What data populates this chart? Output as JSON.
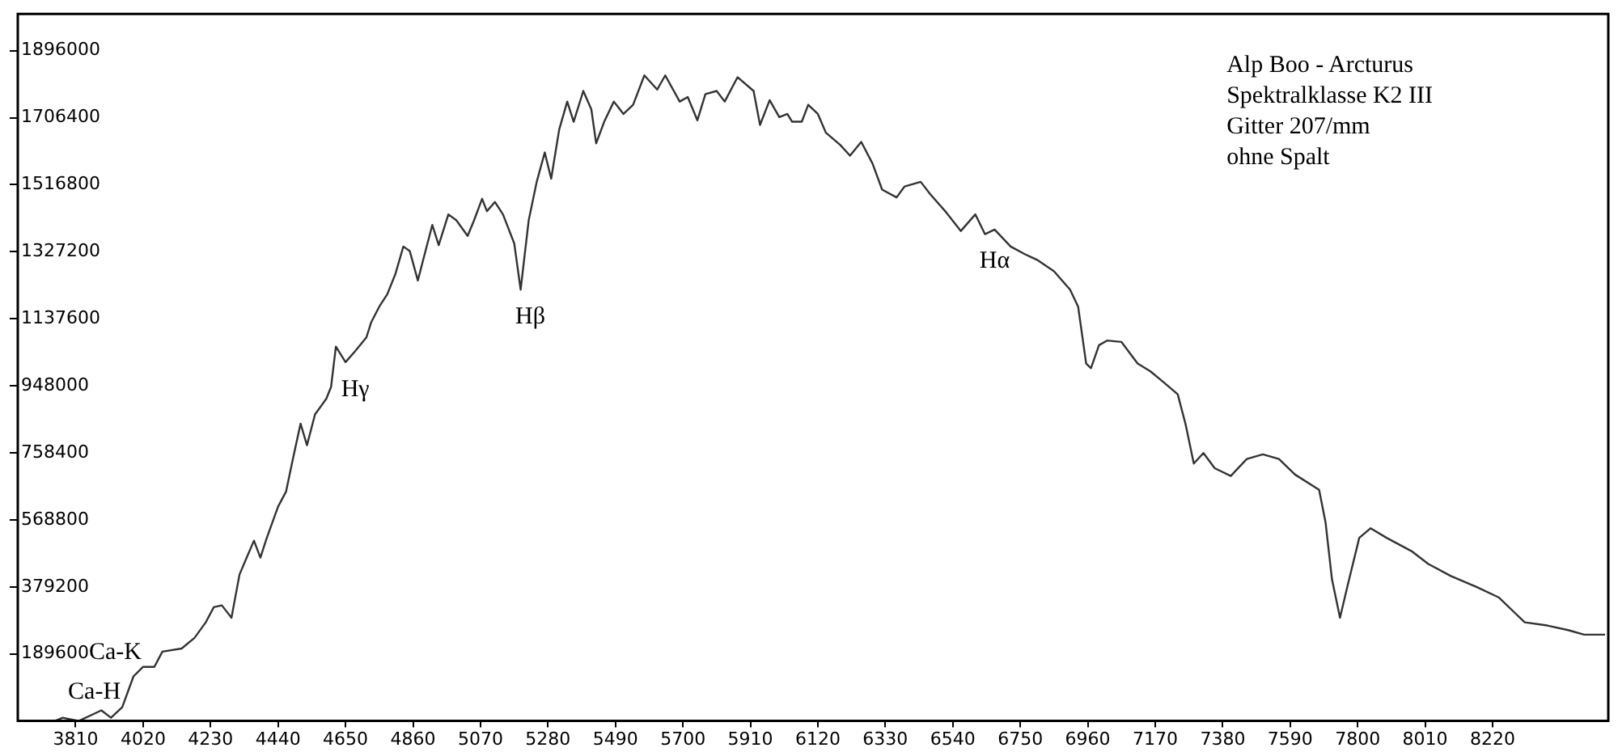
{
  "chart_data": {
    "type": "line",
    "xlim": [
      3630,
      8580
    ],
    "ylim": [
      0,
      2000000
    ],
    "xticks": [
      3810,
      4020,
      4230,
      4440,
      4650,
      4860,
      5070,
      5280,
      5490,
      5700,
      5910,
      6120,
      6330,
      6540,
      6750,
      6960,
      7170,
      7380,
      7590,
      7800,
      8010,
      8220
    ],
    "yticks": [
      189600,
      379200,
      568800,
      758400,
      948000,
      1137600,
      1327200,
      1516800,
      1706400,
      1896000
    ],
    "grid": false,
    "legend": false,
    "marker": "none",
    "line_style": "solid",
    "series": [
      {
        "color": "#333333",
        "x": [
          3745,
          3770,
          3820,
          3890,
          3920,
          3955,
          3990,
          4020,
          4055,
          4080,
          4140,
          4180,
          4215,
          4240,
          4265,
          4295,
          4320,
          4340,
          4365,
          4385,
          4405,
          4440,
          4465,
          4485,
          4510,
          4530,
          4555,
          4590,
          4605,
          4620,
          4650,
          4680,
          4715,
          4730,
          4755,
          4780,
          4805,
          4830,
          4850,
          4875,
          4895,
          4920,
          4940,
          4970,
          4995,
          5030,
          5050,
          5075,
          5090,
          5115,
          5140,
          5175,
          5195,
          5220,
          5245,
          5270,
          5290,
          5315,
          5340,
          5360,
          5390,
          5415,
          5430,
          5455,
          5485,
          5515,
          5545,
          5580,
          5620,
          5645,
          5690,
          5715,
          5745,
          5770,
          5805,
          5830,
          5870,
          5920,
          5940,
          5970,
          6000,
          6025,
          6040,
          6070,
          6090,
          6120,
          6145,
          6190,
          6220,
          6255,
          6290,
          6320,
          6365,
          6390,
          6440,
          6470,
          6520,
          6565,
          6610,
          6640,
          6670,
          6720,
          6765,
          6805,
          6855,
          6905,
          6930,
          6955,
          6970,
          6995,
          7020,
          7065,
          7115,
          7155,
          7195,
          7240,
          7265,
          7290,
          7320,
          7355,
          7405,
          7455,
          7505,
          7555,
          7605,
          7680,
          7700,
          7720,
          7745,
          7770,
          7805,
          7840,
          7890,
          7970,
          8020,
          8090,
          8170,
          8240,
          8290,
          8320,
          8390,
          8455,
          8505,
          8570
        ],
        "values": [
          0,
          9000,
          0,
          30000,
          9000,
          39000,
          126000,
          153000,
          153000,
          196000,
          205000,
          235000,
          279000,
          322000,
          327000,
          292000,
          414000,
          457000,
          510000,
          462000,
          518000,
          606000,
          649000,
          736000,
          841000,
          780000,
          867000,
          911000,
          945000,
          1059000,
          1015000,
          1046000,
          1085000,
          1128000,
          1172000,
          1207000,
          1264000,
          1342000,
          1329000,
          1246000,
          1316000,
          1403000,
          1346000,
          1433000,
          1416000,
          1372000,
          1416000,
          1477000,
          1442000,
          1468000,
          1433000,
          1351000,
          1220000,
          1416000,
          1525000,
          1608000,
          1534000,
          1673000,
          1752000,
          1695000,
          1782000,
          1730000,
          1634000,
          1695000,
          1752000,
          1717000,
          1743000,
          1826000,
          1786000,
          1826000,
          1752000,
          1765000,
          1699000,
          1773000,
          1782000,
          1752000,
          1821000,
          1782000,
          1686000,
          1756000,
          1708000,
          1717000,
          1695000,
          1695000,
          1743000,
          1717000,
          1664000,
          1629000,
          1599000,
          1638000,
          1577000,
          1503000,
          1481000,
          1512000,
          1525000,
          1490000,
          1438000,
          1386000,
          1433000,
          1377000,
          1390000,
          1342000,
          1320000,
          1303000,
          1272000,
          1220000,
          1172000,
          1011000,
          998000,
          1063000,
          1076000,
          1072000,
          1011000,
          989000,
          959000,
          924000,
          837000,
          728000,
          758000,
          715000,
          693000,
          741000,
          754000,
          741000,
          697000,
          654000,
          562000,
          401000,
          292000,
          388000,
          518000,
          545000,
          518000,
          479000,
          444000,
          410000,
          379000,
          349000,
          305000,
          279000,
          270000,
          257000,
          244000,
          244000
        ]
      }
    ],
    "annotations": [
      {
        "text": "Hγ",
        "x": 4650,
        "y": 1015000
      },
      {
        "text": "Hβ",
        "x": 5195,
        "y": 1220000
      },
      {
        "text": "Hα",
        "x": 6640,
        "y": 1377000
      },
      {
        "text": "Ca-K",
        "x": 4020,
        "y": 153000
      },
      {
        "text": "Ca-H",
        "x": 3955,
        "y": 39000
      },
      "Alp Boo - Arcturus",
      "Spektralklasse K2 III",
      "Gitter 207/mm",
      "ohne Spalt"
    ]
  }
}
